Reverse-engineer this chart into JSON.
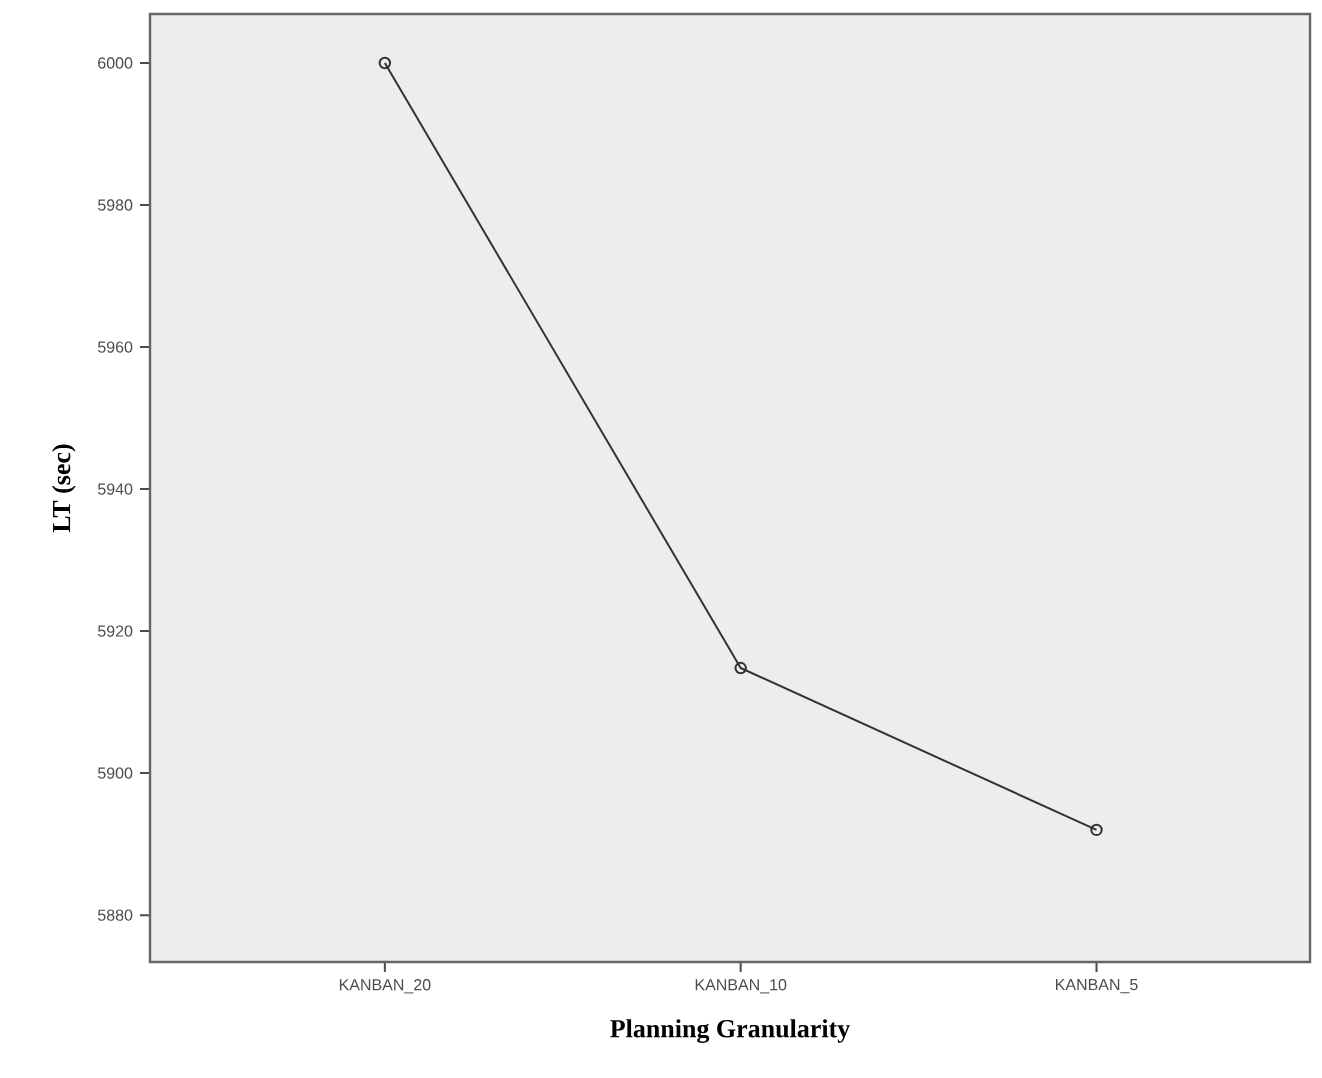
{
  "chart_data": {
    "type": "line",
    "xlabel": "Planning Granularity",
    "ylabel": "LT (sec)",
    "categories": [
      "KANBAN_20",
      "KANBAN_10",
      "KANBAN_5"
    ],
    "series": [
      {
        "color": "#333333",
        "values": [
          6000,
          5914.8,
          5892.0
        ]
      }
    ],
    "ylim": [
      5873.4,
      6006.9
    ],
    "yticks": [
      5880,
      5900,
      5920,
      5940,
      5960,
      5980,
      6000
    ],
    "marker": "circle",
    "line_style": "solid"
  }
}
